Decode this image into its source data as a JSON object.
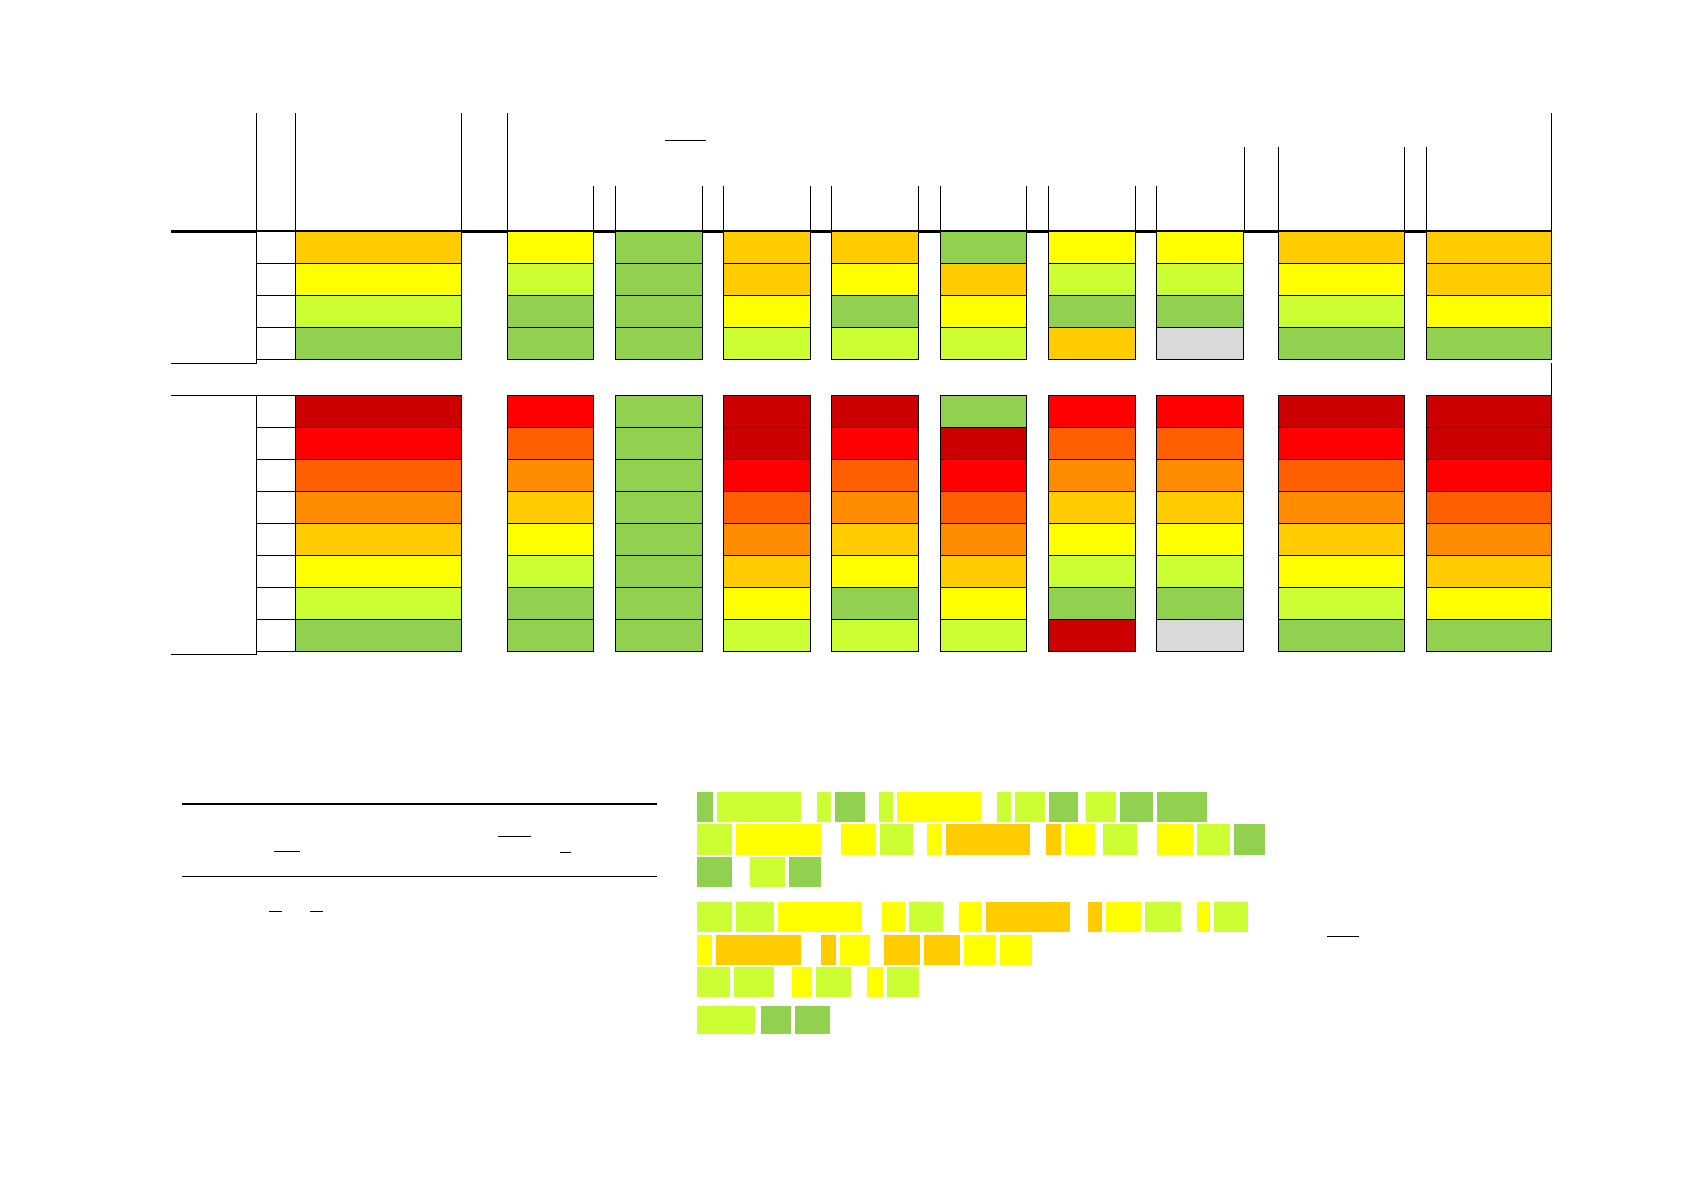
{
  "palette": {
    "dark-red": "#cc0000",
    "red": "#ff0000",
    "red-orange": "#ff5f00",
    "orange": "#ff8c00",
    "amber": "#ffcc00",
    "yellow": "#ffff00",
    "lime": "#ccff33",
    "green": "#92d050",
    "grey": "#d9d9d9"
  },
  "table": {
    "header_labels": [],
    "group_1": {
      "label": "",
      "rows": [
        [
          "amber",
          "yellow",
          "green",
          "amber",
          "amber",
          "green",
          "yellow",
          "yellow",
          "amber",
          "amber"
        ],
        [
          "yellow",
          "lime",
          "green",
          "amber",
          "yellow",
          "amber",
          "lime",
          "lime",
          "yellow",
          "amber"
        ],
        [
          "lime",
          "green",
          "green",
          "yellow",
          "green",
          "yellow",
          "green",
          "green",
          "lime",
          "yellow"
        ],
        [
          "green",
          "green",
          "green",
          "lime",
          "lime",
          "lime",
          "amber",
          "grey",
          "green",
          "green"
        ]
      ]
    },
    "group_2": {
      "label": "",
      "rows": [
        [
          "dark-red",
          "red",
          "green",
          "dark-red",
          "dark-red",
          "green",
          "red",
          "red",
          "dark-red",
          "dark-red"
        ],
        [
          "red",
          "red-orange",
          "green",
          "dark-red",
          "red",
          "dark-red",
          "red-orange",
          "red-orange",
          "red",
          "dark-red"
        ],
        [
          "red-orange",
          "orange",
          "green",
          "red",
          "red-orange",
          "red",
          "orange",
          "orange",
          "red-orange",
          "red"
        ],
        [
          "orange",
          "amber",
          "green",
          "red-orange",
          "orange",
          "red-orange",
          "amber",
          "amber",
          "orange",
          "red-orange"
        ],
        [
          "amber",
          "yellow",
          "green",
          "orange",
          "amber",
          "orange",
          "yellow",
          "yellow",
          "amber",
          "orange"
        ],
        [
          "yellow",
          "lime",
          "green",
          "amber",
          "yellow",
          "amber",
          "lime",
          "lime",
          "yellow",
          "amber"
        ],
        [
          "lime",
          "green",
          "green",
          "yellow",
          "green",
          "yellow",
          "green",
          "green",
          "lime",
          "yellow"
        ],
        [
          "green",
          "green",
          "green",
          "lime",
          "lime",
          "lime",
          "dark-red",
          "grey",
          "green",
          "green"
        ]
      ]
    }
  },
  "notes_table": {
    "header": "",
    "body": ""
  },
  "legend": {
    "lines": [
      [
        "green",
        "lime",
        "lime",
        "green",
        "lime",
        "yellow",
        "lime",
        "lime",
        "green",
        "lime",
        "green",
        "green"
      ],
      [
        "lime",
        "yellow",
        "yellow",
        "lime",
        "yellow",
        "amber",
        "amber",
        "yellow",
        "lime",
        "yellow",
        "lime",
        "green"
      ],
      [
        "green",
        "lime",
        "green"
      ],
      [
        "lime",
        "lime",
        "yellow",
        "yellow",
        "lime",
        "yellow",
        "amber",
        "amber",
        "yellow",
        "lime",
        "yellow",
        "lime"
      ],
      [
        "yellow",
        "amber",
        "amber",
        "yellow",
        "amber",
        "amber",
        "yellow",
        "yellow"
      ],
      [
        "lime",
        "lime",
        "yellow",
        "lime",
        "yellow",
        "lime"
      ],
      [
        "lime",
        "green",
        "green"
      ]
    ]
  }
}
